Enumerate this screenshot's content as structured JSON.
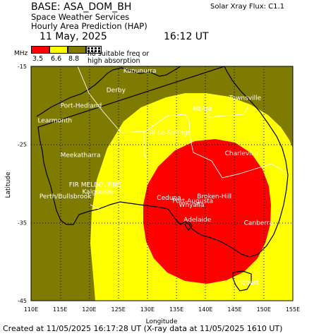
{
  "header": {
    "base": "BASE: ASA_DOM_BH",
    "service": "Space Weather Services",
    "product": "Hourly Area Prediction (HAP)",
    "flux": "Solar Xray Flux: C1.1",
    "date": "11 May, 2025",
    "time": "16:12 UT"
  },
  "legend": {
    "unit": "MHz",
    "ticks": [
      "3.5",
      "6.6",
      "8.8"
    ],
    "note": "no suitable freq or high absorption",
    "colors": {
      "red": "#ff0000",
      "yellow": "#ffff00",
      "olive": "#7f7a00",
      "hatch": "#000000"
    }
  },
  "axes": {
    "xlabel": "Longitude",
    "ylabel": "Latitude",
    "x_ticks": [
      "110E",
      "115E",
      "120E",
      "125E",
      "130E",
      "135E",
      "140E",
      "145E",
      "150E",
      "155E"
    ],
    "y_ticks": [
      "-15",
      "-25",
      "-35",
      "-45"
    ],
    "x_range": [
      110,
      155
    ],
    "y_range": [
      -45,
      -15
    ]
  },
  "places": [
    {
      "name": "Kununurra",
      "lon": 128.7,
      "lat": -15.8
    },
    {
      "name": "Derby",
      "lon": 124.6,
      "lat": -18.3
    },
    {
      "name": "Port-Hedland",
      "lon": 118.6,
      "lat": -20.3
    },
    {
      "name": "Learmonth",
      "lon": 114.1,
      "lat": -22.2
    },
    {
      "name": "Mt-Isa",
      "lon": 139.5,
      "lat": -20.7
    },
    {
      "name": "Townsville",
      "lon": 146.8,
      "lat": -19.3
    },
    {
      "name": "Alice-Springs",
      "lon": 133.9,
      "lat": -23.7
    },
    {
      "name": "Meekatharra",
      "lon": 118.5,
      "lat": -26.6
    },
    {
      "name": "Charleville",
      "lon": 146.2,
      "lat": -26.4
    },
    {
      "name": "FIR MELBOURNE",
      "lon": 121.0,
      "lat": -30.4
    },
    {
      "name": "Kalgoorlie",
      "lon": 121.5,
      "lat": -31.3
    },
    {
      "name": "Perth/Bullsbrook",
      "lon": 115.9,
      "lat": -31.9
    },
    {
      "name": "Ceduna",
      "lon": 133.7,
      "lat": -32.1
    },
    {
      "name": "Broken-Hill",
      "lon": 141.5,
      "lat": -31.9
    },
    {
      "name": "Port-Augusta",
      "lon": 137.8,
      "lat": -32.5
    },
    {
      "name": "Whyalla",
      "lon": 137.6,
      "lat": -33.0
    },
    {
      "name": "Adelaide",
      "lon": 138.6,
      "lat": -34.9
    },
    {
      "name": "Canberra",
      "lon": 149.1,
      "lat": -35.3
    },
    {
      "name": "Hobart",
      "lon": 147.3,
      "lat": -42.9
    }
  ],
  "footer": "Created at 11/05/2025 16:17:28 UT (X-ray data at 11/05/2025 1610 UT)"
}
